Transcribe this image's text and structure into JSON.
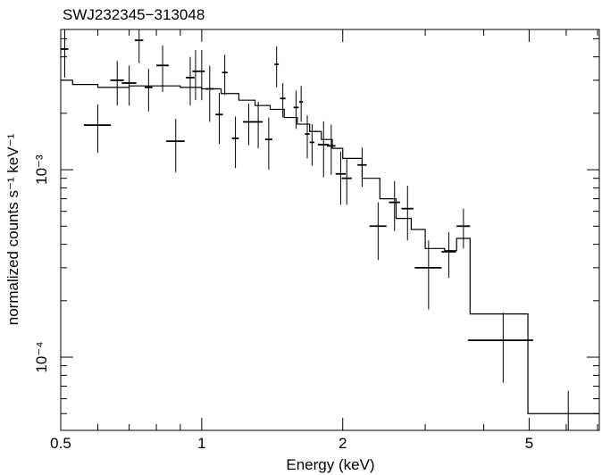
{
  "chart_data": {
    "type": "errorbar",
    "title": "SWJ232345−313048",
    "x_label": "Energy (keV)",
    "y_label": "normalized counts s⁻¹ keV⁻¹",
    "log_x": true,
    "log_y": true,
    "xlim": [
      0.5,
      7.06
    ],
    "ylim": [
      4.07e-05,
      0.0056
    ],
    "xticks": [
      0.5,
      1,
      2,
      5
    ],
    "xminor": [
      0.6,
      0.7,
      0.8,
      0.9,
      3,
      4,
      6,
      7
    ],
    "yticks": [
      {
        "value": 0.0001,
        "label": "10⁻⁴"
      },
      {
        "value": 0.001,
        "label": "10⁻³"
      }
    ],
    "yminor": [
      5e-05,
      6e-05,
      7e-05,
      8e-05,
      9e-05,
      0.0002,
      0.0003,
      0.0004,
      0.0005,
      0.0006,
      0.0007,
      0.0008,
      0.0009,
      0.002,
      0.003,
      0.004,
      0.005
    ],
    "data": {
      "color": "#000000",
      "x": [
        0.51,
        0.6,
        0.66,
        0.7,
        0.735,
        0.77,
        0.825,
        0.88,
        0.945,
        0.97,
        1.0,
        1.04,
        1.09,
        1.12,
        1.18,
        1.26,
        1.32,
        1.39,
        1.445,
        1.49,
        1.59,
        1.63,
        1.68,
        1.72,
        1.82,
        1.89,
        1.98,
        2.04,
        2.2,
        2.38,
        2.58,
        2.75,
        3.05,
        3.37,
        3.62,
        4.4,
        6.06
      ],
      "xerr": [
        0.009,
        0.04,
        0.022,
        0.025,
        0.015,
        0.015,
        0.025,
        0.04,
        0.02,
        0.015,
        0.015,
        0.02,
        0.02,
        0.015,
        0.02,
        0.035,
        0.03,
        0.025,
        0.015,
        0.02,
        0.02,
        0.015,
        0.02,
        0.02,
        0.05,
        0.04,
        0.05,
        0.05,
        0.05,
        0.1,
        0.07,
        0.08,
        0.2,
        0.12,
        0.12,
        0.7,
        0
      ],
      "values": [
        0.0044,
        0.00173,
        0.003,
        0.0029,
        0.0049,
        0.00275,
        0.0036,
        0.00142,
        0.0031,
        0.00335,
        0.00335,
        0.0027,
        0.00197,
        0.0033,
        0.00147,
        0.0018,
        0.0018,
        0.00145,
        0.00365,
        0.0024,
        0.00215,
        0.0023,
        0.00155,
        0.0014,
        0.00136,
        0.00134,
        0.00095,
        0.0009,
        0.00106,
        0.0005,
        0.00067,
        0.00062,
        0.0003,
        0.000365,
        0.0005,
        0.000123,
        4.3e-05
      ],
      "yerr": [
        0.0013,
        0.0005,
        0.0008,
        0.0007,
        0.0012,
        0.0007,
        0.001,
        0.00045,
        0.0009,
        0.001,
        0.001,
        0.0009,
        0.0006,
        0.0008,
        0.00045,
        0.00045,
        0.0005,
        0.00045,
        0.0009,
        0.0005,
        0.0005,
        0.0005,
        0.0004,
        0.00035,
        0.00045,
        0.0004,
        0.0003,
        0.00025,
        0.00025,
        0.00017,
        0.0002,
        0.0002,
        0.00012,
        0.0001,
        0.00012,
        5e-05,
        2.3e-05
      ]
    },
    "model": {
      "color": "#000000",
      "x": [
        0.5,
        0.53,
        0.6,
        0.7,
        0.8,
        0.9,
        1.0,
        1.1,
        1.2,
        1.3,
        1.4,
        1.5,
        1.6,
        1.7,
        1.8,
        1.9,
        2.0,
        2.2,
        2.4,
        2.6,
        2.8,
        3.0,
        3.3,
        3.5,
        3.74,
        4.97
      ],
      "values": [
        0.003,
        0.00285,
        0.00275,
        0.0028,
        0.0028,
        0.00275,
        0.0027,
        0.00255,
        0.00235,
        0.0022,
        0.0021,
        0.0019,
        0.00175,
        0.0016,
        0.00145,
        0.0013,
        0.00115,
        0.0009,
        0.0007,
        0.00055,
        0.00048,
        0.00038,
        0.00037,
        0.00043,
        0.00017,
        5e-05
      ]
    }
  }
}
